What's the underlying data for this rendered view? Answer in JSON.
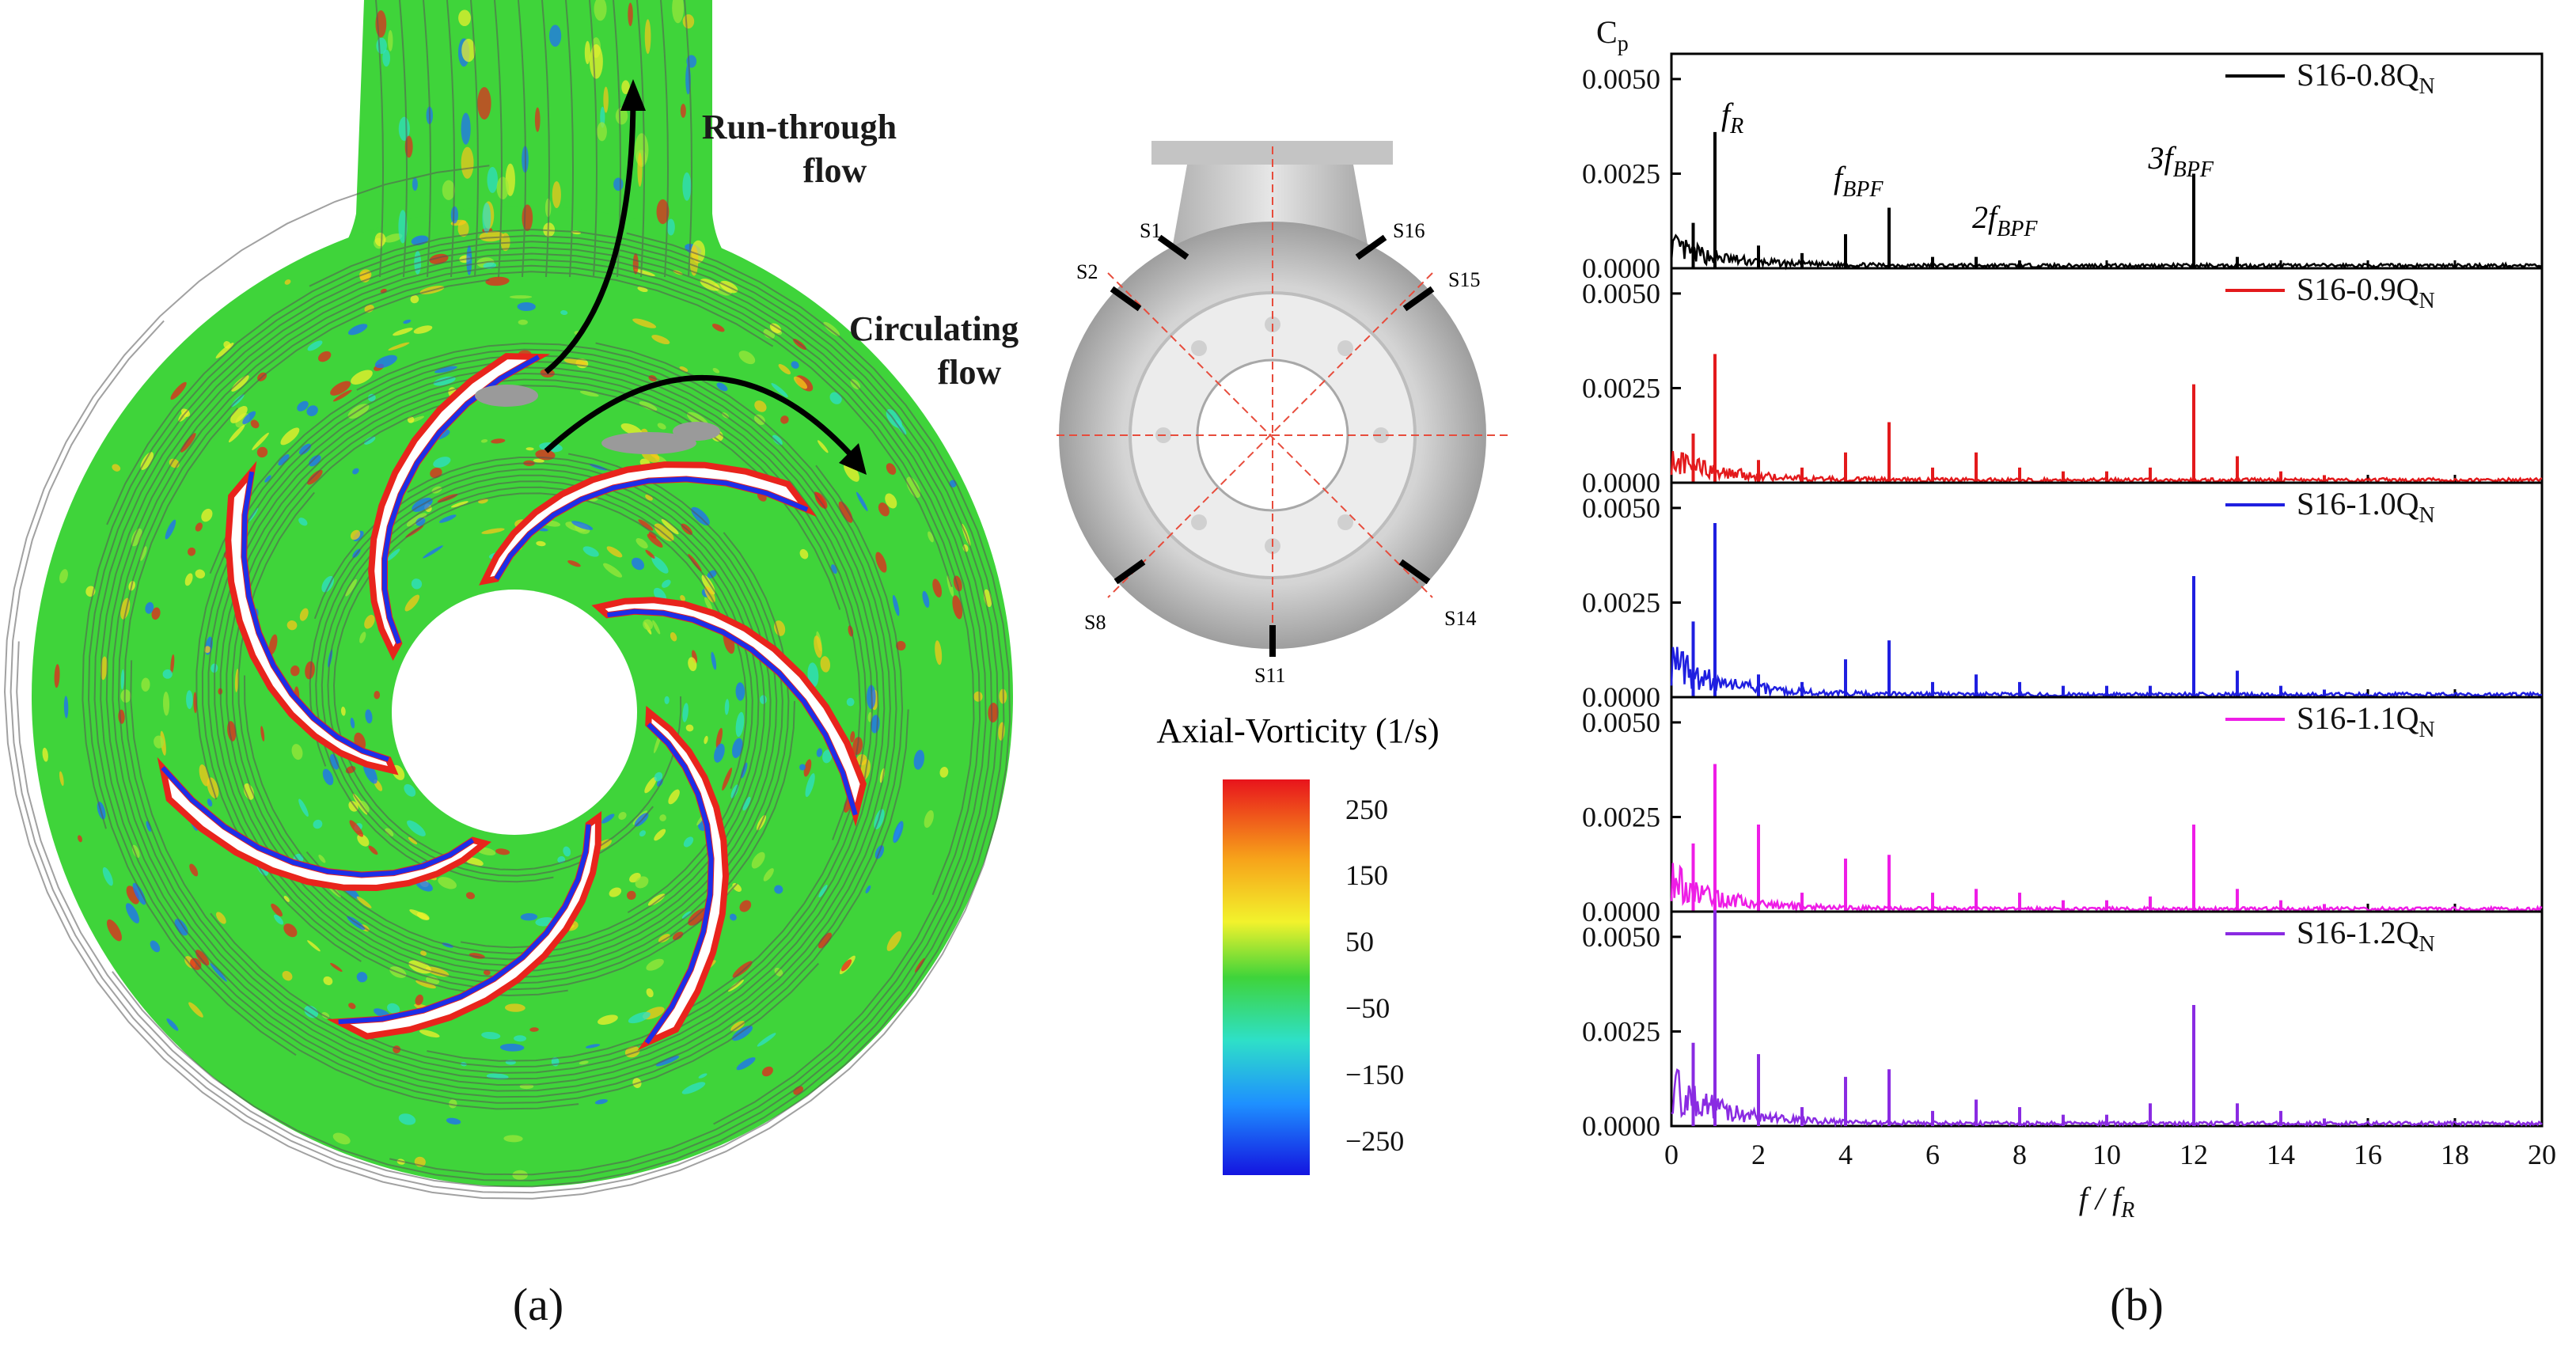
{
  "panel_a": {
    "caption": "(a)",
    "annotations": {
      "run_through": [
        "Run-through",
        "flow"
      ],
      "circulating": [
        "Circulating",
        "flow"
      ]
    },
    "volute_labels": [
      "S1",
      "S2",
      "S8",
      "S11",
      "S14",
      "S15",
      "S16"
    ],
    "colorbar": {
      "title": "Axial-Vorticity (1/s)",
      "ticks": [
        "250",
        "150",
        "50",
        "−50",
        "−150",
        "−250"
      ]
    },
    "colors": {
      "field_green": "#3fd43a",
      "positive": "#e8241c",
      "negative": "#1c2ee8"
    }
  },
  "panel_b": {
    "caption": "(b)"
  },
  "chart_data": {
    "type": "line",
    "title": "",
    "ylabel": "C",
    "ylabel_sub": "p",
    "xlabel": "f / f",
    "xlabel_sub": "R",
    "xlim": [
      0,
      20
    ],
    "ylim": [
      0,
      0.0055
    ],
    "x_ticks": [
      "0",
      "2",
      "4",
      "6",
      "8",
      "10",
      "12",
      "14",
      "16",
      "18",
      "20"
    ],
    "y_ticks": [
      "0.0000",
      "0.0025",
      "0.0050"
    ],
    "peak_labels": [
      {
        "text": "f",
        "sub": "R",
        "prefix": ""
      },
      {
        "text": "f",
        "sub": "BPF",
        "prefix": ""
      },
      {
        "text": "f",
        "sub": "BPF",
        "prefix": "2"
      },
      {
        "text": "f",
        "sub": "BPF",
        "prefix": "3"
      }
    ],
    "series": [
      {
        "name": "S16-0.8Q",
        "sub": "N",
        "color": "#000000",
        "peaks": [
          [
            0.5,
            0.0012
          ],
          [
            1,
            0.0036
          ],
          [
            2,
            0.0006
          ],
          [
            3,
            0.0004
          ],
          [
            4,
            0.0009
          ],
          [
            5,
            0.0016
          ],
          [
            6,
            0.0003
          ],
          [
            7,
            0.0003
          ],
          [
            8,
            0.0002
          ],
          [
            12,
            0.0025
          ],
          [
            13,
            0.0003
          ]
        ]
      },
      {
        "name": "S16-0.9Q",
        "sub": "N",
        "color": "#e31a1c",
        "peaks": [
          [
            0.5,
            0.0013
          ],
          [
            1,
            0.0034
          ],
          [
            2,
            0.0006
          ],
          [
            3,
            0.0004
          ],
          [
            4,
            0.0008
          ],
          [
            5,
            0.0016
          ],
          [
            6,
            0.0004
          ],
          [
            7,
            0.0008
          ],
          [
            8,
            0.0004
          ],
          [
            9,
            0.0003
          ],
          [
            10,
            0.0003
          ],
          [
            11,
            0.0004
          ],
          [
            12,
            0.0026
          ],
          [
            13,
            0.0007
          ],
          [
            14,
            0.0003
          ],
          [
            15,
            0.0002
          ]
        ]
      },
      {
        "name": "S16-1.0Q",
        "sub": "N",
        "color": "#1f1fe0",
        "peaks": [
          [
            0.5,
            0.002
          ],
          [
            1,
            0.0046
          ],
          [
            2,
            0.0006
          ],
          [
            3,
            0.0004
          ],
          [
            4,
            0.001
          ],
          [
            5,
            0.0015
          ],
          [
            6,
            0.0004
          ],
          [
            7,
            0.0006
          ],
          [
            8,
            0.0004
          ],
          [
            9,
            0.0003
          ],
          [
            10,
            0.0003
          ],
          [
            11,
            0.0003
          ],
          [
            12,
            0.0032
          ],
          [
            13,
            0.0007
          ],
          [
            14,
            0.0003
          ],
          [
            15,
            0.0002
          ]
        ]
      },
      {
        "name": "S16-1.1Q",
        "sub": "N",
        "color": "#ee1de6",
        "peaks": [
          [
            0.5,
            0.0018
          ],
          [
            1,
            0.0039
          ],
          [
            2,
            0.0023
          ],
          [
            3,
            0.0005
          ],
          [
            4,
            0.0014
          ],
          [
            5,
            0.0015
          ],
          [
            6,
            0.0005
          ],
          [
            7,
            0.0006
          ],
          [
            8,
            0.0005
          ],
          [
            9,
            0.0003
          ],
          [
            10,
            0.0003
          ],
          [
            11,
            0.0004
          ],
          [
            12,
            0.0023
          ],
          [
            13,
            0.0006
          ],
          [
            14,
            0.0003
          ],
          [
            15,
            0.0002
          ]
        ]
      },
      {
        "name": "S16-1.2Q",
        "sub": "N",
        "color": "#8a2be2",
        "peaks": [
          [
            0.5,
            0.0022
          ],
          [
            1,
            0.0057
          ],
          [
            2,
            0.0019
          ],
          [
            3,
            0.0005
          ],
          [
            4,
            0.0013
          ],
          [
            5,
            0.0015
          ],
          [
            6,
            0.0004
          ],
          [
            7,
            0.0007
          ],
          [
            8,
            0.0005
          ],
          [
            9,
            0.0003
          ],
          [
            10,
            0.0003
          ],
          [
            11,
            0.0006
          ],
          [
            12,
            0.0032
          ],
          [
            13,
            0.0006
          ],
          [
            14,
            0.0004
          ],
          [
            15,
            0.0002
          ]
        ]
      }
    ]
  }
}
